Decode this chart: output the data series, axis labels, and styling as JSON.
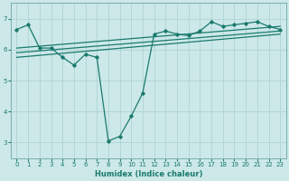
{
  "xlabel": "Humidex (Indice chaleur)",
  "bg_color": "#cce8e8",
  "line_color": "#1a7a6e",
  "grid_color": "#aacfcf",
  "xlim": [
    -0.5,
    23.5
  ],
  "ylim": [
    2.5,
    7.5
  ],
  "yticks": [
    3,
    4,
    5,
    6,
    7
  ],
  "xticks": [
    0,
    1,
    2,
    3,
    4,
    5,
    6,
    7,
    8,
    9,
    10,
    11,
    12,
    13,
    14,
    15,
    16,
    17,
    18,
    19,
    20,
    21,
    22,
    23
  ],
  "main_x": [
    0,
    1,
    2,
    3,
    4,
    5,
    6,
    7,
    8,
    9,
    10,
    11,
    12,
    13,
    14,
    15,
    16,
    17,
    18,
    19,
    20,
    21,
    22,
    23
  ],
  "main_y": [
    6.65,
    6.8,
    6.05,
    6.05,
    5.75,
    5.5,
    5.85,
    5.75,
    3.05,
    3.2,
    3.85,
    4.6,
    6.5,
    6.6,
    6.5,
    6.45,
    6.6,
    6.9,
    6.75,
    6.8,
    6.85,
    6.9,
    6.75,
    6.65
  ],
  "trend1_x": [
    0,
    23
  ],
  "trend1_y": [
    6.05,
    6.75
  ],
  "trend2_x": [
    0,
    23
  ],
  "trend2_y": [
    5.9,
    6.6
  ],
  "trend3_x": [
    0,
    23
  ],
  "trend3_y": [
    5.75,
    6.5
  ]
}
